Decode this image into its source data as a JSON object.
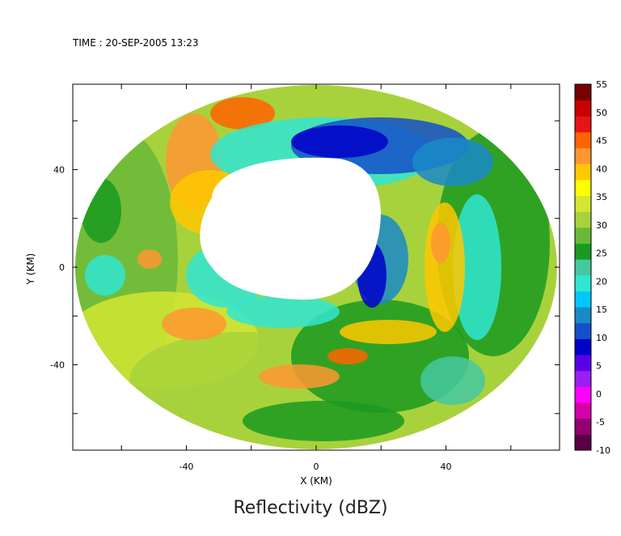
{
  "timestamp": "TIME : 20-SEP-2005 13:23",
  "caption": "Reflectivity (dBZ)",
  "chart_data": {
    "type": "heatmap",
    "title": "TIME : 20-SEP-2005 13:23",
    "xlabel": "X (KM)",
    "ylabel": "Y (KM)",
    "xlim": [
      -75,
      75
    ],
    "ylim": [
      -75,
      75
    ],
    "x_ticks": [
      -40,
      0,
      40
    ],
    "y_ticks": [
      -40,
      0,
      40
    ],
    "colorbar": {
      "label": "Reflectivity (dBZ)",
      "range": [
        -10,
        55
      ],
      "ticks": [
        -10,
        -5,
        0,
        5,
        10,
        15,
        20,
        25,
        30,
        35,
        40,
        45,
        50,
        55
      ],
      "colors": [
        "#5a0045",
        "#90006e",
        "#d400a8",
        "#ff00ff",
        "#9b1ff2",
        "#5a00e8",
        "#0000c8",
        "#1450c8",
        "#1a8ac8",
        "#00c8ff",
        "#30e6d2",
        "#45c8a0",
        "#1a9a20",
        "#68b93a",
        "#a8d23c",
        "#d2e632",
        "#ffff00",
        "#ffc800",
        "#ff9632",
        "#ff6400",
        "#e61414",
        "#c80000",
        "#780000"
      ]
    },
    "echo_region": {
      "center": [
        0,
        0
      ],
      "radius_km": 75
    },
    "inner_gap_region": "central area near origin with no data (white)"
  }
}
